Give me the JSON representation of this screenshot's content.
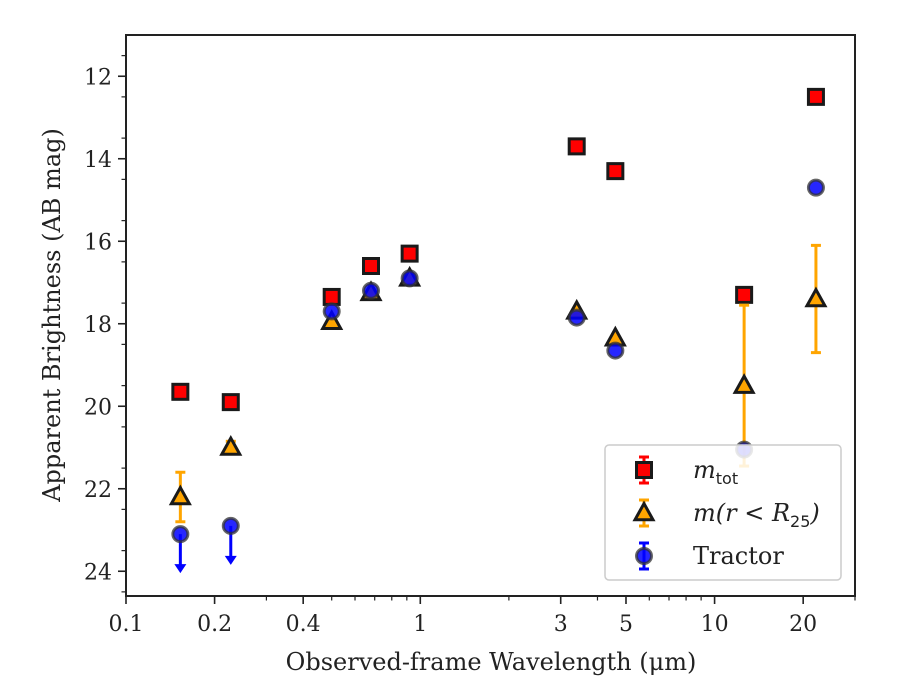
{
  "chart_data": {
    "type": "scatter",
    "xlabel": "Observed-frame Wavelength (μm)",
    "ylabel": "Apparent Brightness (AB mag)",
    "xscale": "log",
    "xlim": [
      0.1,
      30
    ],
    "ylim": [
      24.6,
      11
    ],
    "y_inverted": true,
    "x_ticks": [
      0.1,
      0.2,
      0.4,
      1,
      3,
      5,
      10,
      20
    ],
    "x_tick_labels": [
      "0.1",
      "0.2",
      "0.4",
      "1",
      "3",
      "5",
      "10",
      "20"
    ],
    "y_ticks": [
      12,
      14,
      16,
      18,
      20,
      22,
      24
    ],
    "y_tick_labels": [
      "12",
      "14",
      "16",
      "18",
      "20",
      "22",
      "24"
    ],
    "grid": false,
    "legend_position": "lower-right",
    "series": [
      {
        "key": "mtot",
        "legend_label": {
          "main": "m",
          "sub": "tot"
        },
        "marker": "square",
        "face_color": "#ff0000",
        "edge_color": "#1a1a1a",
        "error_color": "#ff0000",
        "points": [
          {
            "x": 0.153,
            "y": 19.65
          },
          {
            "x": 0.227,
            "y": 19.9
          },
          {
            "x": 0.5,
            "y": 17.35
          },
          {
            "x": 0.68,
            "y": 16.6
          },
          {
            "x": 0.92,
            "y": 16.3
          },
          {
            "x": 3.4,
            "y": 13.7
          },
          {
            "x": 4.6,
            "y": 14.3
          },
          {
            "x": 12.6,
            "y": 17.3
          },
          {
            "x": 22.1,
            "y": 12.5
          }
        ]
      },
      {
        "key": "mr25",
        "legend_label": {
          "main": "m(r < R",
          "sub": "25",
          "tail": ")"
        },
        "marker": "triangle",
        "face_color": "#ffa500",
        "edge_color": "#1a1a1a",
        "error_color": "#ffa500",
        "points": [
          {
            "x": 0.153,
            "y": 22.2,
            "yerr_low": 0.6,
            "yerr_high": 0.6
          },
          {
            "x": 0.227,
            "y": 21.0,
            "yerr_low": 0.15,
            "yerr_high": 0.15
          },
          {
            "x": 0.5,
            "y": 17.95
          },
          {
            "x": 0.68,
            "y": 17.25
          },
          {
            "x": 0.92,
            "y": 16.9
          },
          {
            "x": 3.4,
            "y": 17.7
          },
          {
            "x": 4.6,
            "y": 18.35
          },
          {
            "x": 12.6,
            "y": 19.5,
            "yerr_low": 1.95,
            "yerr_high": 1.95
          },
          {
            "x": 22.1,
            "y": 17.4,
            "yerr_low": 1.3,
            "yerr_high": 1.3
          }
        ]
      },
      {
        "key": "tractor",
        "legend_label": {
          "main": "Tractor"
        },
        "marker": "circle",
        "face_color": "#0000ff",
        "edge_color": "#1a1a1a",
        "error_color": "#0000ff",
        "points": [
          {
            "x": 0.153,
            "y": 23.1,
            "upper_limit": true
          },
          {
            "x": 0.227,
            "y": 22.9,
            "upper_limit": true
          },
          {
            "x": 0.5,
            "y": 17.7
          },
          {
            "x": 0.68,
            "y": 17.2
          },
          {
            "x": 0.92,
            "y": 16.9
          },
          {
            "x": 3.4,
            "y": 17.85
          },
          {
            "x": 4.6,
            "y": 18.65
          },
          {
            "x": 12.6,
            "y": 21.05
          },
          {
            "x": 22.1,
            "y": 14.7
          }
        ]
      }
    ]
  }
}
